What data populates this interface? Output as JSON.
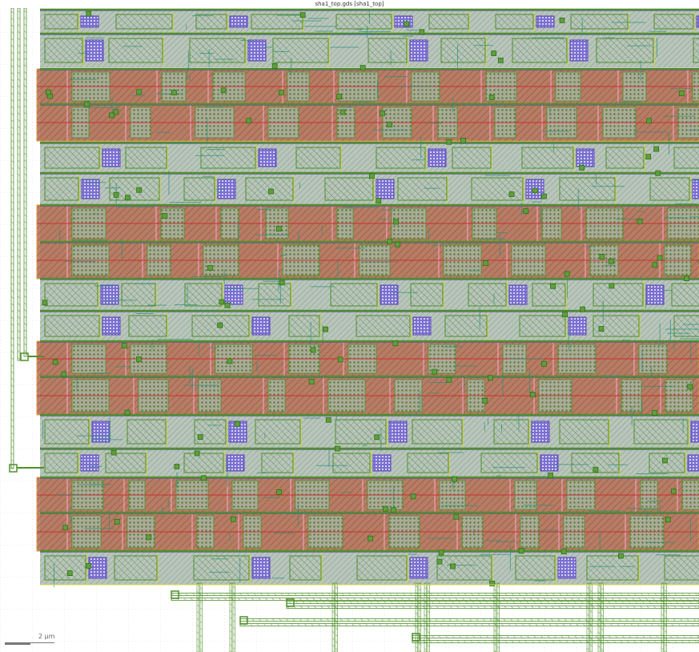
{
  "window": {
    "title": "sha1_top.gds [sha1_top]"
  },
  "scale_bar": {
    "label": "2  μm"
  },
  "layout_view": {
    "colors": {
      "background": "#ffffff",
      "grid": "#b8b8b8",
      "poly_red": "#cc3030",
      "fill_brown": "#a65a3c",
      "metal_green": "#4f8f2a",
      "metal_teal": "#2a8f78",
      "diffusion_gray": "#a9b6a9",
      "via_purple": "#5c47b8",
      "nwell_orange": "#e39a3a",
      "pink": "#f0a0b8",
      "yellow_outline": "#d8d640"
    }
  }
}
